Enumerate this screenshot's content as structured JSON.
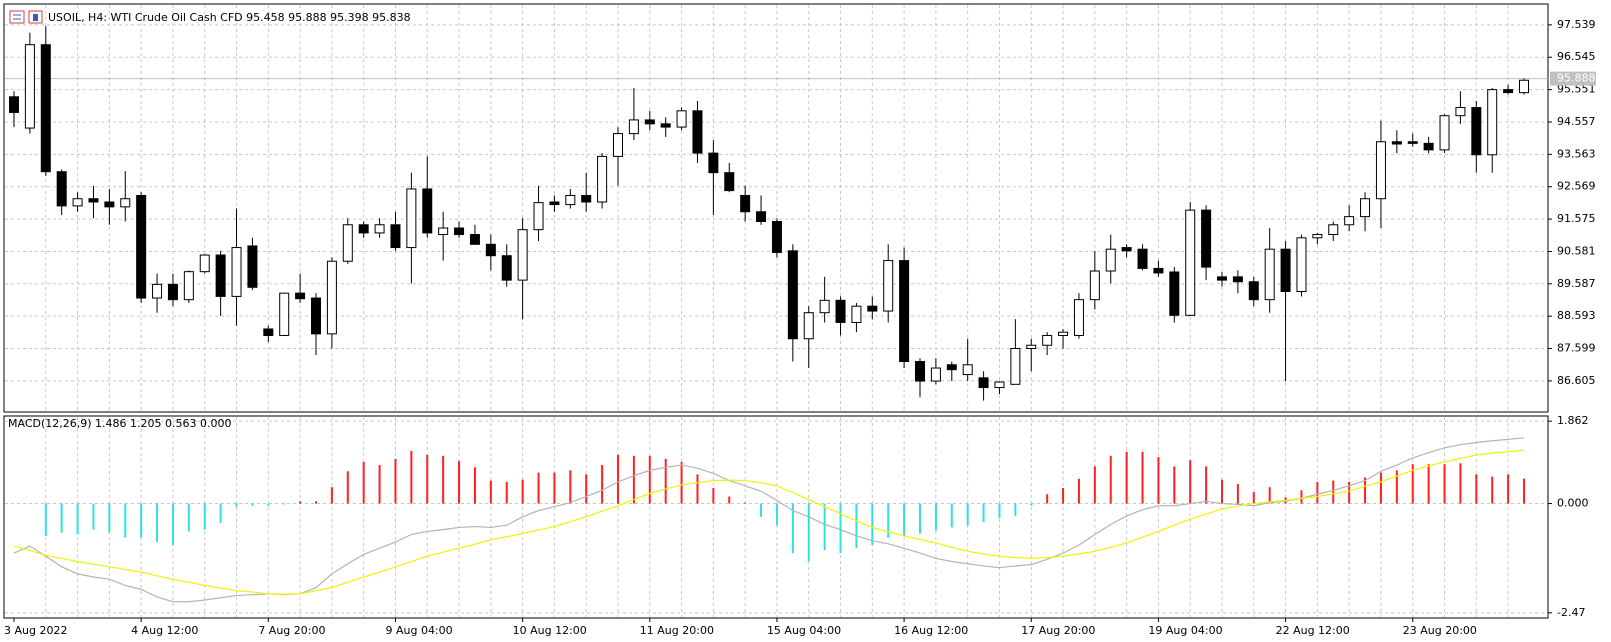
{
  "chart_data": [
    {
      "type": "candlestick",
      "title": "USOIL, H4:  WTI Crude Oil Cash CFD   95.458 95.888 95.398 95.838",
      "categories": [
        "3 Aug 2022",
        null,
        null,
        null,
        null,
        null,
        null,
        null,
        "4 Aug 12:00",
        null,
        null,
        null,
        null,
        null,
        null,
        null,
        "7 Aug 20:00",
        null,
        null,
        null,
        null,
        null,
        null,
        null,
        "9 Aug 04:00",
        null,
        null,
        null,
        null,
        null,
        null,
        null,
        "10 Aug 12:00",
        null,
        null,
        null,
        null,
        null,
        null,
        null,
        "11 Aug 20:00",
        null,
        null,
        null,
        null,
        null,
        null,
        null,
        "15 Aug 04:00",
        null,
        null,
        null,
        null,
        null,
        null,
        null,
        "16 Aug 12:00",
        null,
        null,
        null,
        null,
        null,
        null,
        null,
        "17 Aug 20:00",
        null,
        null,
        null,
        null,
        null,
        null,
        null,
        "19 Aug 04:00",
        null,
        null,
        null,
        null,
        null,
        null,
        null,
        "22 Aug 12:00",
        null,
        null,
        null,
        null,
        null,
        null,
        null,
        "23 Aug 20:00",
        null,
        null,
        null,
        null,
        null,
        null,
        null
      ],
      "open": [
        95.33,
        94.37,
        96.93,
        93.03,
        91.98,
        92.2,
        92.1,
        91.95,
        92.3,
        89.15,
        89.57,
        89.1,
        89.96,
        90.47,
        89.2,
        90.75,
        88.2,
        88.0,
        89.3,
        89.15,
        88.05,
        90.28,
        91.4,
        91.15,
        91.4,
        90.7,
        92.5,
        91.1,
        91.3,
        91.1,
        90.8,
        90.45,
        89.7,
        91.25,
        92.1,
        92.02,
        92.3,
        92.1,
        93.5,
        94.2,
        94.62,
        94.5,
        94.4,
        94.9,
        93.6,
        93.0,
        92.3,
        91.8,
        91.5,
        90.6,
        87.9,
        88.7,
        89.08,
        88.4,
        88.9,
        88.75,
        90.3,
        87.2,
        86.6,
        87.1,
        86.8,
        86.7,
        86.4,
        86.5,
        87.6,
        87.7,
        88.0,
        88.0,
        89.1,
        89.98,
        90.7,
        90.65,
        90.06,
        89.95,
        88.62,
        91.85,
        89.8,
        89.8,
        89.65,
        89.1,
        90.65,
        89.35,
        91.0,
        91.1,
        91.4,
        91.65,
        92.2,
        93.95,
        93.95,
        93.9,
        93.7,
        94.75,
        95.0,
        93.55,
        95.55,
        95.458
      ],
      "high": [
        95.5,
        97.3,
        97.5,
        93.1,
        92.4,
        92.6,
        92.5,
        93.05,
        92.4,
        89.9,
        89.9,
        90.0,
        90.5,
        90.6,
        91.9,
        91.0,
        88.3,
        89.3,
        89.9,
        89.3,
        90.4,
        91.6,
        91.5,
        91.6,
        91.8,
        93.0,
        93.5,
        91.8,
        91.5,
        91.4,
        91.1,
        90.8,
        91.6,
        92.6,
        92.3,
        92.5,
        93.0,
        93.6,
        94.4,
        95.6,
        94.9,
        94.7,
        95.0,
        95.2,
        94.0,
        93.3,
        92.6,
        92.3,
        91.6,
        90.8,
        88.9,
        89.8,
        89.2,
        89.0,
        89.2,
        90.8,
        90.7,
        87.3,
        87.3,
        87.2,
        87.9,
        86.9,
        86.6,
        88.5,
        87.9,
        88.1,
        88.2,
        89.3,
        90.6,
        91.1,
        90.8,
        90.8,
        90.3,
        90.1,
        92.1,
        92.0,
        89.95,
        90.0,
        89.8,
        91.3,
        90.9,
        91.1,
        91.15,
        91.5,
        92.0,
        92.4,
        94.6,
        94.3,
        94.2,
        94.1,
        94.8,
        95.5,
        95.2,
        95.6,
        95.7,
        95.888
      ],
      "low": [
        94.4,
        94.2,
        92.9,
        91.7,
        91.8,
        91.6,
        91.4,
        91.5,
        89.0,
        88.7,
        88.9,
        89.0,
        89.9,
        88.6,
        88.3,
        89.4,
        87.8,
        88.0,
        89.0,
        87.4,
        87.6,
        90.2,
        91.0,
        91.0,
        90.6,
        89.6,
        91.0,
        90.3,
        91.0,
        90.8,
        90.0,
        89.5,
        88.5,
        90.9,
        91.8,
        91.9,
        91.8,
        91.9,
        92.6,
        94.0,
        94.3,
        94.1,
        94.3,
        93.3,
        91.7,
        92.4,
        91.5,
        91.4,
        90.4,
        87.2,
        87.0,
        88.4,
        88.0,
        88.1,
        88.5,
        88.4,
        87.0,
        86.1,
        86.5,
        86.6,
        86.6,
        86.0,
        86.2,
        86.5,
        86.9,
        87.4,
        87.6,
        87.9,
        88.8,
        89.6,
        90.4,
        90.0,
        89.8,
        88.4,
        88.6,
        89.7,
        89.5,
        89.3,
        88.9,
        88.7,
        86.6,
        89.2,
        90.8,
        90.9,
        91.2,
        91.2,
        91.3,
        93.6,
        93.8,
        93.6,
        93.6,
        94.5,
        93.0,
        93.0,
        95.4,
        95.398
      ],
      "close": [
        94.85,
        96.93,
        93.03,
        91.98,
        92.2,
        92.1,
        91.95,
        92.2,
        89.15,
        89.57,
        89.1,
        89.96,
        90.47,
        89.2,
        90.7,
        89.48,
        88.0,
        89.3,
        89.13,
        88.05,
        90.28,
        91.4,
        91.15,
        91.4,
        90.7,
        92.5,
        91.15,
        91.3,
        91.1,
        90.8,
        90.45,
        89.7,
        91.25,
        92.08,
        92.02,
        92.3,
        92.1,
        93.5,
        94.2,
        94.62,
        94.5,
        94.4,
        94.9,
        93.6,
        93.0,
        92.45,
        91.8,
        91.5,
        90.55,
        87.9,
        88.7,
        89.08,
        88.4,
        88.9,
        88.75,
        90.3,
        87.2,
        86.6,
        87.0,
        86.95,
        87.1,
        86.4,
        86.57,
        87.6,
        87.7,
        88.0,
        88.1,
        89.1,
        89.98,
        90.65,
        90.6,
        90.06,
        89.92,
        88.62,
        91.85,
        90.1,
        89.7,
        89.65,
        89.1,
        90.65,
        89.35,
        91.0,
        91.1,
        91.4,
        91.65,
        92.2,
        93.95,
        93.88,
        93.9,
        93.7,
        94.75,
        95.0,
        93.55,
        95.55,
        95.46,
        95.838
      ],
      "up_color": "#ffffff",
      "down_color": "#000000",
      "current_price": 95.888,
      "current_price_color": "#c0c0c0",
      "ylim": [
        85.65,
        98.18
      ],
      "yticks": [
        97.539,
        96.545,
        95.551,
        94.557,
        93.563,
        92.569,
        91.575,
        90.581,
        89.587,
        88.593,
        87.599,
        86.605
      ],
      "grid": true
    },
    {
      "type": "macd",
      "title": "MACD(12,26,9) 1.486 1.205 0.563 0.000",
      "series": [
        {
          "type": "bar",
          "color": "#ff2020",
          "negative_color": "#30e0e0",
          "values": [
            null,
            null,
            -0.73,
            -0.66,
            -0.7,
            -0.59,
            -0.66,
            -0.77,
            -0.77,
            -0.87,
            -0.94,
            -0.63,
            -0.59,
            -0.44,
            -0.07,
            -0.05,
            -0.05,
            -0.02,
            0.05,
            0.05,
            0.37,
            0.73,
            0.94,
            0.87,
            1.01,
            1.19,
            1.1,
            1.08,
            0.96,
            0.82,
            0.52,
            0.49,
            0.54,
            0.7,
            0.7,
            0.75,
            0.66,
            0.87,
            1.1,
            1.08,
            1.08,
            1.01,
            0.94,
            0.66,
            0.35,
            0.16,
            0.02,
            -0.3,
            -0.49,
            -1.12,
            -1.31,
            -1.05,
            -1.12,
            -1.01,
            -0.94,
            -0.77,
            -0.73,
            -0.68,
            -0.61,
            -0.54,
            -0.49,
            -0.42,
            -0.33,
            -0.28,
            -0.05,
            0.21,
            0.35,
            0.56,
            0.84,
            1.08,
            1.17,
            1.17,
            1.05,
            0.84,
            0.98,
            0.84,
            0.54,
            0.44,
            0.26,
            0.37,
            0.14,
            0.3,
            0.49,
            0.52,
            0.49,
            0.59,
            0.7,
            0.75,
            0.89,
            0.89,
            0.89,
            0.91,
            0.66,
            0.61,
            0.66,
            0.563
          ]
        },
        {
          "type": "line",
          "color": "#b4b4b4",
          "values": [
            -1.12,
            -0.96,
            -1.19,
            -1.43,
            -1.59,
            -1.66,
            -1.71,
            -1.85,
            -1.94,
            -2.11,
            -2.22,
            -2.22,
            -2.18,
            -2.13,
            -2.08,
            -2.06,
            -2.04,
            -2.06,
            -2.04,
            -1.9,
            -1.59,
            -1.36,
            -1.15,
            -1.01,
            -0.87,
            -0.7,
            -0.63,
            -0.59,
            -0.54,
            -0.52,
            -0.54,
            -0.49,
            -0.3,
            -0.16,
            -0.07,
            0.02,
            0.16,
            0.3,
            0.49,
            0.63,
            0.75,
            0.82,
            0.87,
            0.8,
            0.68,
            0.52,
            0.4,
            0.28,
            0.07,
            -0.16,
            -0.3,
            -0.47,
            -0.59,
            -0.73,
            -0.84,
            -0.91,
            -1.01,
            -1.12,
            -1.24,
            -1.31,
            -1.36,
            -1.41,
            -1.45,
            -1.41,
            -1.38,
            -1.26,
            -1.12,
            -0.94,
            -0.7,
            -0.47,
            -0.28,
            -0.14,
            -0.05,
            -0.05,
            0.0,
            0.05,
            0.0,
            -0.02,
            -0.05,
            0.02,
            0.05,
            0.12,
            0.21,
            0.3,
            0.4,
            0.52,
            0.73,
            0.87,
            1.03,
            1.15,
            1.26,
            1.33,
            1.38,
            1.42,
            1.45,
            1.486
          ]
        },
        {
          "type": "line",
          "color": "#f2f200",
          "values": [
            -0.96,
            -1.06,
            -1.17,
            -1.24,
            -1.31,
            -1.37,
            -1.43,
            -1.49,
            -1.55,
            -1.63,
            -1.71,
            -1.78,
            -1.85,
            -1.91,
            -1.97,
            -2.0,
            -2.04,
            -2.05,
            -2.04,
            -1.97,
            -1.9,
            -1.78,
            -1.66,
            -1.55,
            -1.43,
            -1.31,
            -1.19,
            -1.1,
            -1.01,
            -0.92,
            -0.82,
            -0.75,
            -0.68,
            -0.6,
            -0.52,
            -0.41,
            -0.3,
            -0.17,
            -0.05,
            0.09,
            0.23,
            0.33,
            0.42,
            0.47,
            0.52,
            0.53,
            0.52,
            0.47,
            0.4,
            0.25,
            0.09,
            -0.07,
            -0.23,
            -0.39,
            -0.54,
            -0.64,
            -0.73,
            -0.81,
            -0.89,
            -0.99,
            -1.08,
            -1.14,
            -1.19,
            -1.22,
            -1.24,
            -1.22,
            -1.19,
            -1.14,
            -1.08,
            -0.99,
            -0.89,
            -0.76,
            -0.63,
            -0.49,
            -0.35,
            -0.24,
            -0.12,
            -0.06,
            0.0,
            0.04,
            0.07,
            0.12,
            0.16,
            0.22,
            0.28,
            0.39,
            0.49,
            0.62,
            0.75,
            0.85,
            0.94,
            1.02,
            1.1,
            1.14,
            1.17,
            1.205
          ]
        }
      ],
      "ylim": [
        -2.587,
        1.979
      ],
      "yticks": [
        1.862,
        {
          "value": 0,
          "label": "0.000"
        },
        -2.47
      ],
      "grid": true
    }
  ]
}
